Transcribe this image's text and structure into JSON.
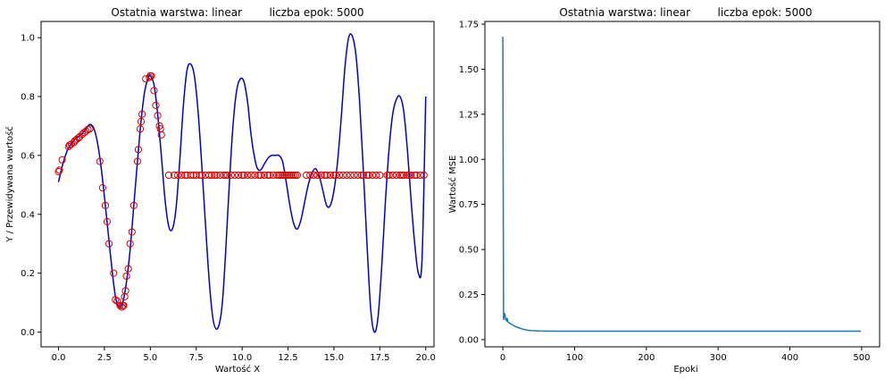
{
  "chart_data": [
    {
      "type": "line",
      "title": "Ostatnia warstwa: linear        liczba epok: 5000",
      "xlabel": "Wartość X",
      "ylabel": "Y / Przewidywana wartość",
      "xlim": [
        -0.95,
        20.45
      ],
      "ylim": [
        -0.05,
        1.055
      ],
      "xticks": [
        "0.0",
        "2.5",
        "5.0",
        "7.5",
        "10.0",
        "12.5",
        "15.0",
        "17.5",
        "20.0"
      ],
      "yticks": [
        "0.0",
        "0.2",
        "0.4",
        "0.6",
        "0.8",
        "1.0"
      ],
      "grid": false,
      "series": [
        {
          "kind": "line",
          "color": "#0000cc",
          "x": [
            0.0,
            0.15,
            0.3,
            0.5,
            0.7,
            0.9,
            1.1,
            1.3,
            1.5,
            1.7,
            1.9,
            2.1,
            2.3,
            2.5,
            2.7,
            2.9,
            3.1,
            3.3,
            3.5,
            3.7,
            3.9,
            4.1,
            4.3,
            4.5,
            4.7,
            4.9,
            5.0,
            5.2,
            5.4,
            5.6,
            5.8,
            6.0,
            6.2,
            6.4,
            6.6,
            6.8,
            7.0,
            7.2,
            7.4,
            7.6,
            7.8,
            8.0,
            8.2,
            8.4,
            8.6,
            8.8,
            8.95,
            9.1,
            9.3,
            9.5,
            9.7,
            9.9,
            10.1,
            10.3,
            10.45,
            10.6,
            10.8,
            11.0,
            11.2,
            11.4,
            11.6,
            11.8,
            12.0,
            12.2,
            12.4,
            12.6,
            12.8,
            13.0,
            13.2,
            13.4,
            13.6,
            13.8,
            14.0,
            14.2,
            14.4,
            14.6,
            14.8,
            15.0,
            15.2,
            15.4,
            15.6,
            15.8,
            16.0,
            16.2,
            16.4,
            16.6,
            16.8,
            17.0,
            17.2,
            17.4,
            17.6,
            17.8,
            18.0,
            18.2,
            18.4,
            18.6,
            18.8,
            19.0,
            19.2,
            19.4,
            19.6,
            19.8,
            20.0
          ],
          "y": [
            0.51,
            0.55,
            0.585,
            0.62,
            0.64,
            0.655,
            0.665,
            0.675,
            0.69,
            0.705,
            0.695,
            0.65,
            0.57,
            0.46,
            0.34,
            0.22,
            0.12,
            0.085,
            0.1,
            0.17,
            0.28,
            0.43,
            0.58,
            0.72,
            0.82,
            0.865,
            0.87,
            0.84,
            0.74,
            0.6,
            0.45,
            0.36,
            0.35,
            0.42,
            0.58,
            0.77,
            0.89,
            0.91,
            0.87,
            0.75,
            0.57,
            0.37,
            0.18,
            0.05,
            0.01,
            0.04,
            0.12,
            0.27,
            0.5,
            0.7,
            0.82,
            0.86,
            0.85,
            0.78,
            0.69,
            0.62,
            0.56,
            0.55,
            0.57,
            0.59,
            0.6,
            0.6,
            0.6,
            0.58,
            0.51,
            0.43,
            0.37,
            0.35,
            0.38,
            0.44,
            0.5,
            0.54,
            0.555,
            0.53,
            0.48,
            0.43,
            0.43,
            0.48,
            0.58,
            0.73,
            0.9,
            1.0,
            1.005,
            0.94,
            0.78,
            0.55,
            0.3,
            0.08,
            0.0,
            0.05,
            0.22,
            0.44,
            0.62,
            0.74,
            0.79,
            0.8,
            0.75,
            0.62,
            0.45,
            0.3,
            0.2,
            0.25,
            0.8
          ]
        },
        {
          "kind": "scatter",
          "marker": "open-circle",
          "color": "#dd0000",
          "x": [
            0.0,
            0.05,
            0.2,
            0.55,
            0.6,
            0.7,
            0.85,
            0.9,
            1.0,
            1.1,
            1.15,
            1.3,
            1.4,
            1.5,
            1.6,
            1.7,
            2.25,
            2.4,
            2.55,
            2.65,
            2.75,
            3.0,
            3.1,
            3.2,
            3.35,
            3.45,
            3.5,
            3.55,
            3.6,
            3.65,
            3.7,
            3.8,
            3.9,
            4.0,
            4.1,
            4.3,
            4.35,
            4.45,
            4.5,
            4.55,
            4.75,
            4.95,
            5.0,
            5.05,
            5.2,
            5.3,
            5.4,
            5.5,
            5.55,
            5.6,
            6.0,
            6.3,
            6.5,
            6.7,
            6.9,
            7.0,
            7.2,
            7.35,
            7.5,
            7.7,
            7.8,
            8.0,
            8.2,
            8.35,
            8.5,
            8.6,
            8.8,
            9.0,
            9.1,
            9.2,
            9.4,
            9.6,
            9.8,
            10.0,
            10.1,
            10.3,
            10.5,
            10.7,
            10.9,
            11.0,
            11.2,
            11.4,
            11.5,
            11.7,
            11.9,
            12.0,
            12.1,
            12.2,
            12.3,
            12.4,
            12.5,
            12.6,
            12.7,
            12.8,
            12.9,
            13.0,
            13.5,
            13.7,
            13.9,
            14.1,
            14.3,
            14.5,
            14.6,
            14.8,
            15.0,
            15.1,
            15.3,
            15.5,
            15.7,
            15.9,
            16.1,
            16.3,
            16.5,
            16.6,
            16.8,
            16.9,
            17.1,
            17.3,
            17.5,
            17.9,
            18.0,
            18.2,
            18.4,
            18.6,
            18.7,
            18.8,
            19.0,
            19.1,
            19.2,
            19.4,
            19.5,
            19.7,
            19.9
          ],
          "y": [
            0.545,
            0.55,
            0.585,
            0.63,
            0.635,
            0.638,
            0.645,
            0.65,
            0.655,
            0.66,
            0.663,
            0.672,
            0.678,
            0.682,
            0.688,
            0.69,
            0.58,
            0.49,
            0.43,
            0.375,
            0.3,
            0.2,
            0.11,
            0.105,
            0.09,
            0.085,
            0.09,
            0.09,
            0.12,
            0.14,
            0.19,
            0.215,
            0.3,
            0.34,
            0.43,
            0.58,
            0.62,
            0.69,
            0.715,
            0.74,
            0.86,
            0.865,
            0.87,
            0.87,
            0.82,
            0.77,
            0.735,
            0.7,
            0.69,
            0.67,
            0.533,
            0.533,
            0.533,
            0.533,
            0.533,
            0.533,
            0.533,
            0.533,
            0.533,
            0.533,
            0.533,
            0.533,
            0.533,
            0.533,
            0.533,
            0.533,
            0.533,
            0.533,
            0.533,
            0.533,
            0.533,
            0.533,
            0.533,
            0.533,
            0.533,
            0.533,
            0.533,
            0.533,
            0.533,
            0.533,
            0.533,
            0.533,
            0.533,
            0.533,
            0.533,
            0.533,
            0.533,
            0.533,
            0.533,
            0.533,
            0.533,
            0.533,
            0.533,
            0.533,
            0.533,
            0.533,
            0.533,
            0.533,
            0.533,
            0.533,
            0.533,
            0.533,
            0.533,
            0.533,
            0.533,
            0.533,
            0.533,
            0.533,
            0.533,
            0.533,
            0.533,
            0.533,
            0.533,
            0.533,
            0.533,
            0.533,
            0.533,
            0.533,
            0.533,
            0.533,
            0.533,
            0.533,
            0.533,
            0.533,
            0.533,
            0.533,
            0.533,
            0.533,
            0.533,
            0.533,
            0.533,
            0.533,
            0.533
          ]
        }
      ]
    },
    {
      "type": "line",
      "title": "Ostatnia warstwa: linear        liczba epok: 5000",
      "xlabel": "Epoki",
      "ylabel": "Wartość MSE",
      "xlim": [
        -25,
        525
      ],
      "ylim": [
        -0.04,
        1.765
      ],
      "xticks": [
        "0",
        "100",
        "200",
        "300",
        "400",
        "500"
      ],
      "yticks": [
        "0.00",
        "0.25",
        "0.50",
        "0.75",
        "1.00",
        "1.25",
        "1.50",
        "1.75"
      ],
      "grid": false,
      "series": [
        {
          "kind": "line",
          "color": "#1f77b4",
          "x": [
            0,
            1,
            2,
            3,
            4,
            5,
            6,
            7,
            8,
            10,
            12,
            15,
            18,
            22,
            26,
            30,
            35,
            40,
            50,
            70,
            100,
            150,
            200,
            300,
            400,
            499
          ],
          "y": [
            1.68,
            0.11,
            0.145,
            0.14,
            0.11,
            0.105,
            0.12,
            0.1,
            0.095,
            0.09,
            0.085,
            0.078,
            0.072,
            0.066,
            0.06,
            0.056,
            0.052,
            0.05,
            0.048,
            0.047,
            0.047,
            0.047,
            0.047,
            0.047,
            0.047,
            0.047
          ]
        }
      ]
    }
  ]
}
